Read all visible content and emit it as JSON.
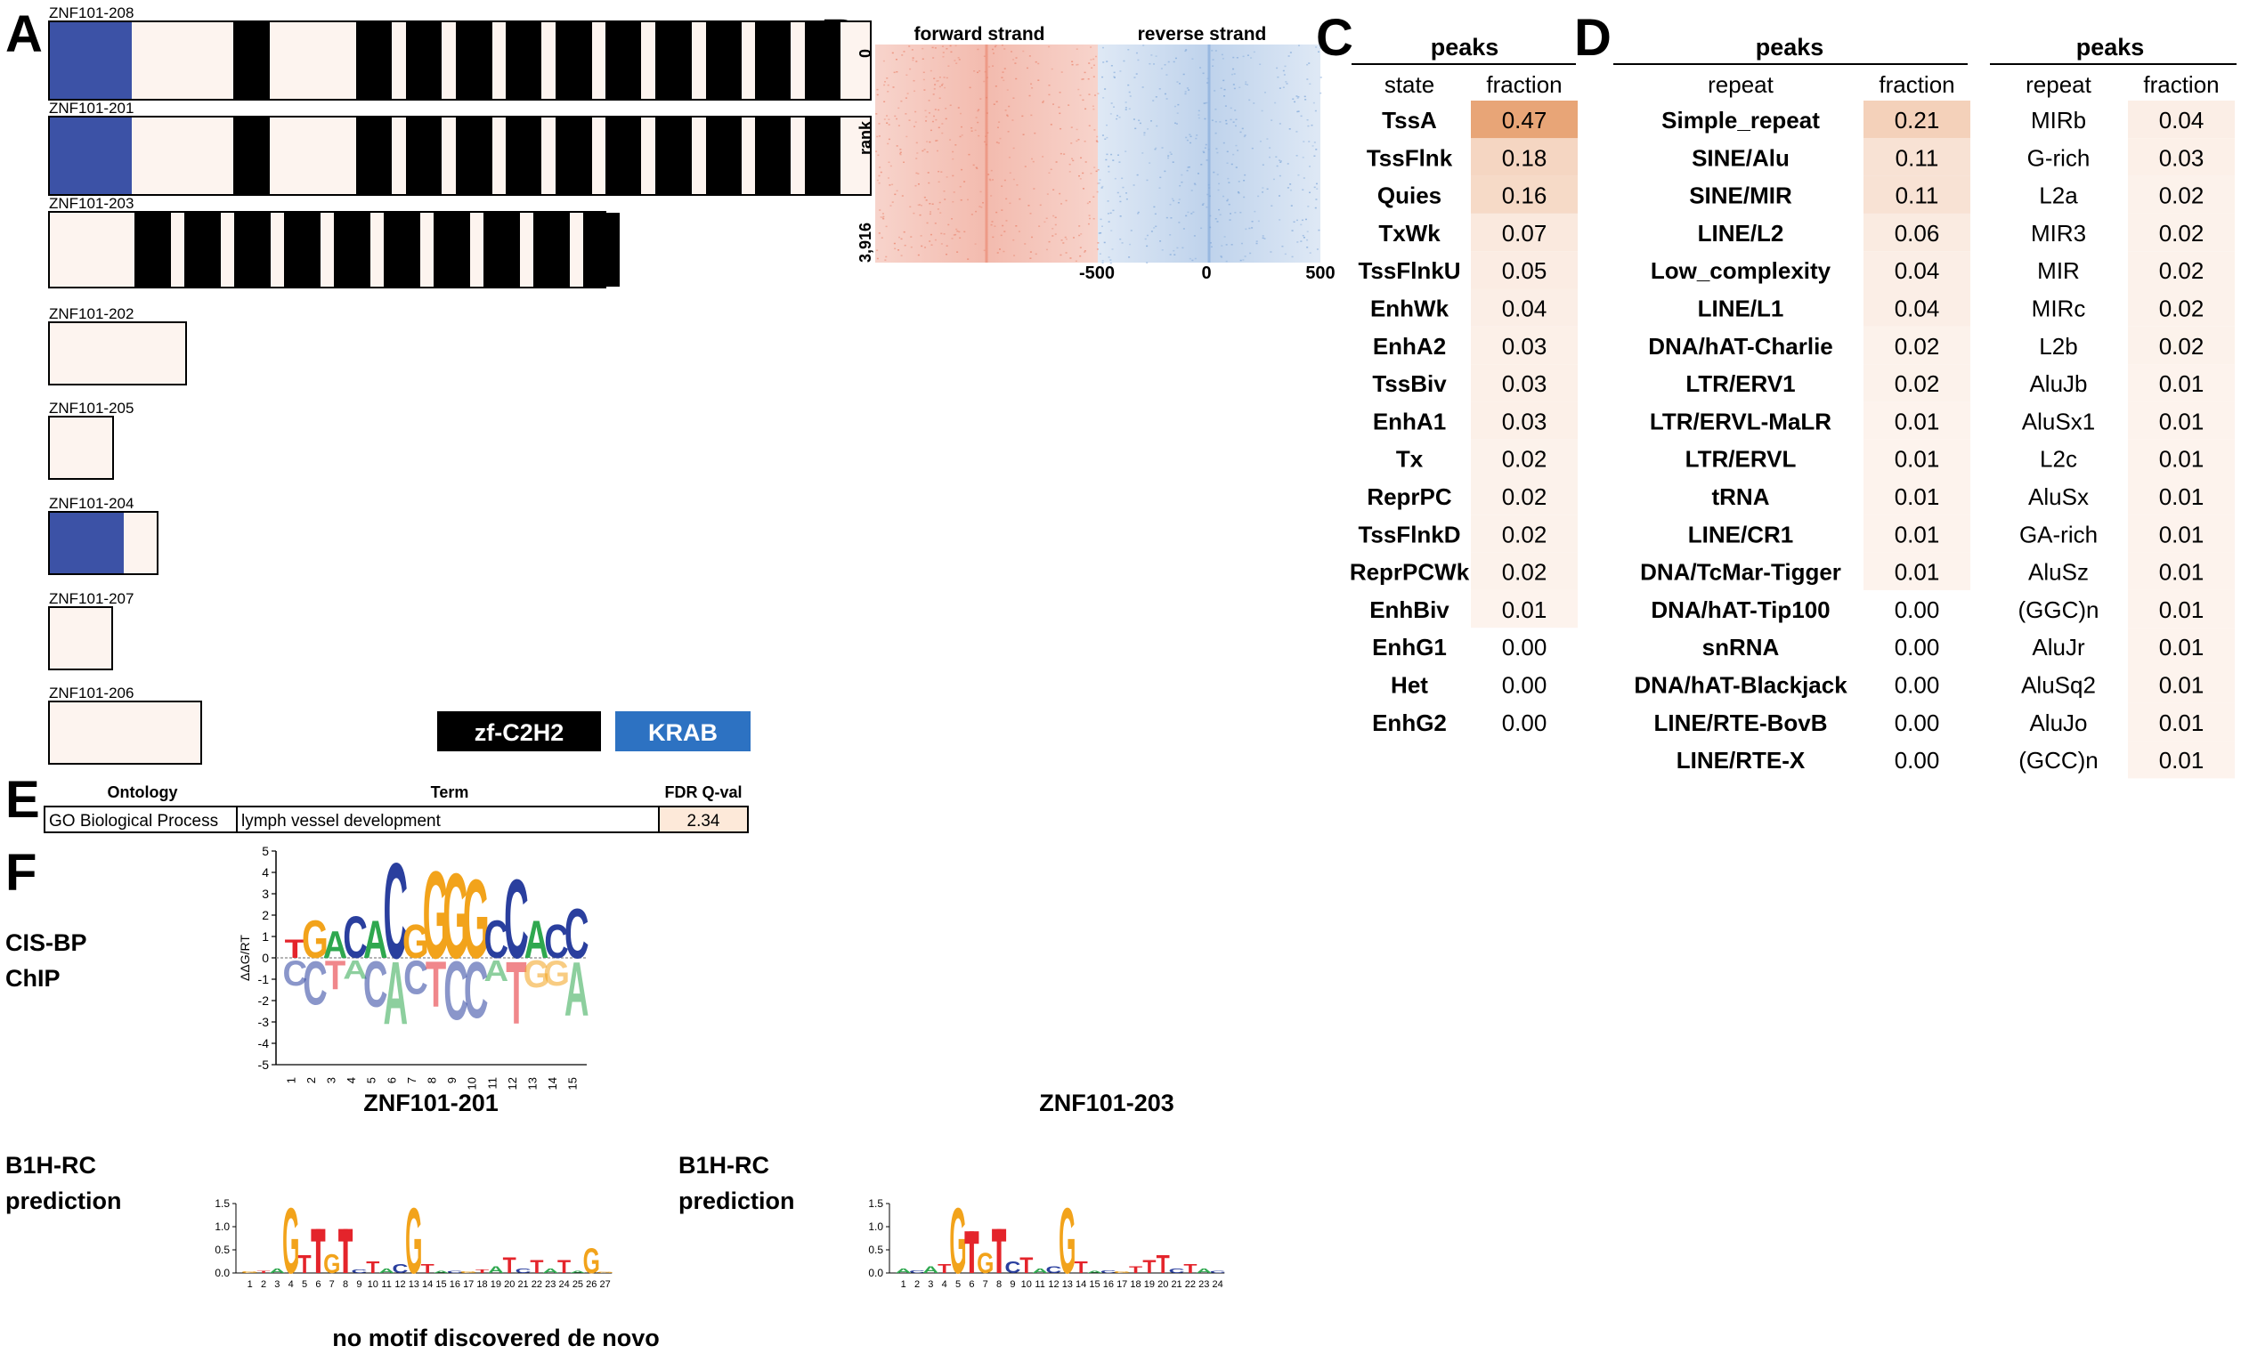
{
  "panel_labels": {
    "a": "A",
    "b": "B",
    "c": "C",
    "d": "D",
    "e": "E",
    "f": "F"
  },
  "panel_a": {
    "isoforms": [
      {
        "name": "ZNF101-208",
        "domains": [
          [
            "K",
            0,
            92
          ],
          [
            "Z",
            206,
            247
          ],
          [
            "Z",
            344,
            384
          ],
          [
            "Z",
            400,
            440
          ],
          [
            "Z",
            456,
            497
          ],
          [
            "Z",
            512,
            552
          ],
          [
            "Z",
            568,
            609
          ],
          [
            "Z",
            624,
            664
          ],
          [
            "Z",
            680,
            721
          ],
          [
            "Z",
            737,
            777
          ],
          [
            "Z",
            792,
            832
          ],
          [
            "Z",
            848,
            888
          ]
        ]
      },
      {
        "name": "ZNF101-201",
        "domains": [
          [
            "K",
            0,
            92
          ],
          [
            "Z",
            206,
            247
          ],
          [
            "Z",
            344,
            384
          ],
          [
            "Z",
            400,
            440
          ],
          [
            "Z",
            456,
            497
          ],
          [
            "Z",
            512,
            552
          ],
          [
            "Z",
            568,
            609
          ],
          [
            "Z",
            624,
            664
          ],
          [
            "Z",
            680,
            721
          ],
          [
            "Z",
            737,
            777
          ],
          [
            "Z",
            792,
            832
          ],
          [
            "Z",
            848,
            888
          ]
        ]
      },
      {
        "name": "ZNF101-203",
        "domains": [
          [
            "Z",
            95,
            136
          ],
          [
            "Z",
            151,
            192
          ],
          [
            "Z",
            207,
            248
          ],
          [
            "Z",
            263,
            304
          ],
          [
            "Z",
            319,
            360
          ],
          [
            "Z",
            375,
            416
          ],
          [
            "Z",
            431,
            472
          ],
          [
            "Z",
            487,
            528
          ],
          [
            "Z",
            543,
            584
          ],
          [
            "Z",
            599,
            640
          ]
        ]
      },
      {
        "name": "ZNF101-202",
        "domains": []
      },
      {
        "name": "ZNF101-205",
        "domains": []
      },
      {
        "name": "ZNF101-204",
        "domains": [
          [
            "K",
            0,
            83
          ]
        ]
      },
      {
        "name": "ZNF101-207",
        "domains": []
      },
      {
        "name": "ZNF101-206",
        "domains": []
      }
    ],
    "legend": [
      {
        "label": "zf-C2H2",
        "color": "#000000"
      },
      {
        "label": "KRAB",
        "color": "#2d72c2"
      }
    ],
    "colors": {
      "krab": "#3c52a6",
      "zf": "#000000",
      "body": "#fdf4ef"
    }
  },
  "panel_b": {
    "forward_label": "forward strand",
    "reverse_label": "reverse strand",
    "ylabel": "rank",
    "ytick_top": "0",
    "ytick_bottom": "3,916",
    "xticks": [
      "-500",
      "0",
      "500"
    ],
    "colors": {
      "forward": "#e9836c",
      "reverse": "#7ea6d8"
    }
  },
  "panel_c": {
    "top_header": "peaks",
    "col_headers": [
      "state",
      "fraction"
    ],
    "rows": [
      [
        "TssA",
        "0.47"
      ],
      [
        "TssFlnk",
        "0.18"
      ],
      [
        "Quies",
        "0.16"
      ],
      [
        "TxWk",
        "0.07"
      ],
      [
        "TssFlnkU",
        "0.05"
      ],
      [
        "EnhWk",
        "0.04"
      ],
      [
        "EnhA2",
        "0.03"
      ],
      [
        "TssBiv",
        "0.03"
      ],
      [
        "EnhA1",
        "0.03"
      ],
      [
        "Tx",
        "0.02"
      ],
      [
        "ReprPC",
        "0.02"
      ],
      [
        "TssFlnkD",
        "0.02"
      ],
      [
        "ReprPCWk",
        "0.02"
      ],
      [
        "EnhBiv",
        "0.01"
      ],
      [
        "EnhG1",
        "0.00"
      ],
      [
        "Het",
        "0.00"
      ],
      [
        "EnhG2",
        "0.00"
      ]
    ]
  },
  "panel_d": {
    "top_header_1": "peaks",
    "top_header_2": "peaks",
    "col_headers_1": [
      "repeat",
      "fraction"
    ],
    "col_headers_2": [
      "repeat",
      "fraction"
    ],
    "rows_1": [
      [
        "Simple_repeat",
        "0.21"
      ],
      [
        "SINE/Alu",
        "0.11"
      ],
      [
        "SINE/MIR",
        "0.11"
      ],
      [
        "LINE/L2",
        "0.06"
      ],
      [
        "Low_complexity",
        "0.04"
      ],
      [
        "LINE/L1",
        "0.04"
      ],
      [
        "DNA/hAT-Charlie",
        "0.02"
      ],
      [
        "LTR/ERV1",
        "0.02"
      ],
      [
        "LTR/ERVL-MaLR",
        "0.01"
      ],
      [
        "LTR/ERVL",
        "0.01"
      ],
      [
        "tRNA",
        "0.01"
      ],
      [
        "LINE/CR1",
        "0.01"
      ],
      [
        "DNA/TcMar-Tigger",
        "0.01"
      ],
      [
        "DNA/hAT-Tip100",
        "0.00"
      ],
      [
        "snRNA",
        "0.00"
      ],
      [
        "DNA/hAT-Blackjack",
        "0.00"
      ],
      [
        "LINE/RTE-BovB",
        "0.00"
      ],
      [
        "LINE/RTE-X",
        "0.00"
      ]
    ],
    "rows_2": [
      [
        "MIRb",
        "0.04"
      ],
      [
        "G-rich",
        "0.03"
      ],
      [
        "L2a",
        "0.02"
      ],
      [
        "MIR3",
        "0.02"
      ],
      [
        "MIR",
        "0.02"
      ],
      [
        "MIRc",
        "0.02"
      ],
      [
        "L2b",
        "0.02"
      ],
      [
        "AluJb",
        "0.01"
      ],
      [
        "AluSx1",
        "0.01"
      ],
      [
        "L2c",
        "0.01"
      ],
      [
        "AluSx",
        "0.01"
      ],
      [
        "GA-rich",
        "0.01"
      ],
      [
        "AluSz",
        "0.01"
      ],
      [
        "(GGC)n",
        "0.01"
      ],
      [
        "AluJr",
        "0.01"
      ],
      [
        "AluSq2",
        "0.01"
      ],
      [
        "AluJo",
        "0.01"
      ],
      [
        "(GCC)n",
        "0.01"
      ]
    ]
  },
  "panel_e": {
    "headers": [
      "Ontology",
      "Term",
      "FDR Q-val"
    ],
    "row": [
      "GO Biological Process",
      "lymph vessel development",
      "2.34"
    ]
  },
  "panel_f": {
    "cisbp_label": [
      "CIS-BP",
      "ChIP"
    ],
    "ylabel": "ΔΔG/RT",
    "yticks": [
      "5",
      "4",
      "3",
      "2",
      "1",
      "0",
      "-1",
      "-2",
      "-3",
      "-4",
      "-5"
    ],
    "xticks": [
      "1",
      "2",
      "3",
      "4",
      "5",
      "6",
      "7",
      "8",
      "9",
      "10",
      "11",
      "12",
      "13",
      "14",
      "15"
    ],
    "pos_letters": [
      "T",
      "G",
      "A",
      "C",
      "A",
      "C",
      "G",
      "G",
      "G",
      "G",
      "C",
      "C",
      "A",
      "C",
      "?"
    ],
    "neg_letters": [
      "C",
      "C",
      "T",
      "A",
      "C",
      "A",
      "C",
      "T",
      "C",
      "C",
      "A",
      "T",
      "G",
      "G",
      "A"
    ],
    "title_201": "ZNF101-201",
    "title_203": "ZNF101-203",
    "b1h_label": [
      "B1H-RC",
      "prediction"
    ],
    "b1h_yticks": [
      "1.5",
      "1.0",
      "0.5",
      "0.0"
    ],
    "b1h_201_xticks": [
      "1",
      "2",
      "3",
      "4",
      "5",
      "6",
      "7",
      "8",
      "9",
      "10",
      "11",
      "12",
      "13",
      "14",
      "15",
      "16",
      "17",
      "18",
      "19",
      "20",
      "21",
      "22",
      "23",
      "24",
      "25",
      "26",
      "27"
    ],
    "b1h_203_xticks": [
      "1",
      "2",
      "3",
      "4",
      "5",
      "6",
      "7",
      "8",
      "9",
      "10",
      "11",
      "12",
      "13",
      "14",
      "15",
      "16",
      "17",
      "18",
      "19",
      "20",
      "21",
      "22",
      "23",
      "24"
    ],
    "b1h_201_heights": [
      0.04,
      0.05,
      0.1,
      1.45,
      0.4,
      0.95,
      0.42,
      0.95,
      0.08,
      0.25,
      0.1,
      0.2,
      1.45,
      0.2,
      0.05,
      0.05,
      0.04,
      0.08,
      0.15,
      0.35,
      0.1,
      0.3,
      0.1,
      0.3,
      0.05,
      0.55,
      0.02
    ],
    "b1h_203_heights": [
      0.1,
      0.06,
      0.15,
      0.2,
      1.45,
      0.9,
      0.45,
      0.95,
      0.25,
      0.35,
      0.1,
      0.15,
      1.45,
      0.25,
      0.05,
      0.06,
      0.04,
      0.15,
      0.3,
      0.4,
      0.1,
      0.2,
      0.1,
      0.05
    ],
    "no_motif": "no motif discovered de novo"
  }
}
